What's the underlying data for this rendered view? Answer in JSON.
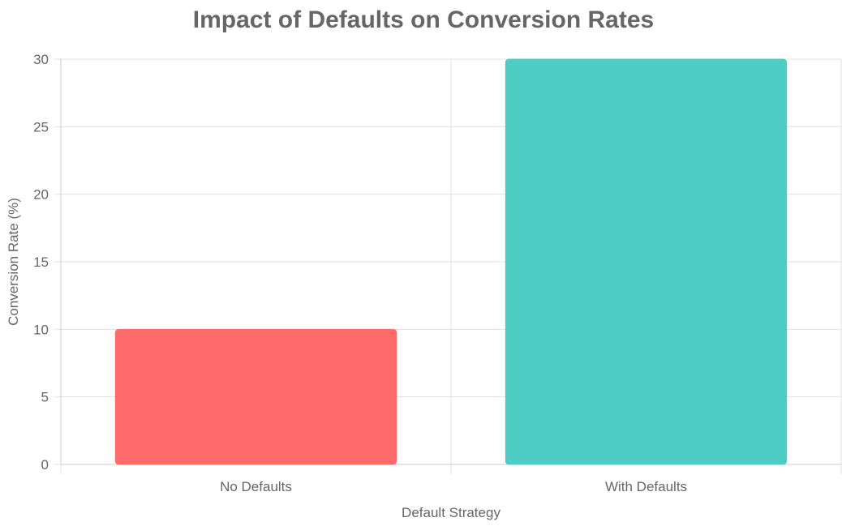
{
  "chart_data": {
    "type": "bar",
    "title": "Impact of Defaults on Conversion Rates",
    "xlabel": "Default Strategy",
    "ylabel": "Conversion Rate (%)",
    "categories": [
      "No Defaults",
      "With Defaults"
    ],
    "values": [
      10,
      30
    ],
    "colors": [
      "#ff6b6b",
      "#4ecdc4"
    ],
    "ylim": [
      0,
      30
    ],
    "yticks": [
      "0",
      "5",
      "10",
      "15",
      "20",
      "25",
      "30"
    ],
    "grid": true,
    "legend": "none"
  }
}
